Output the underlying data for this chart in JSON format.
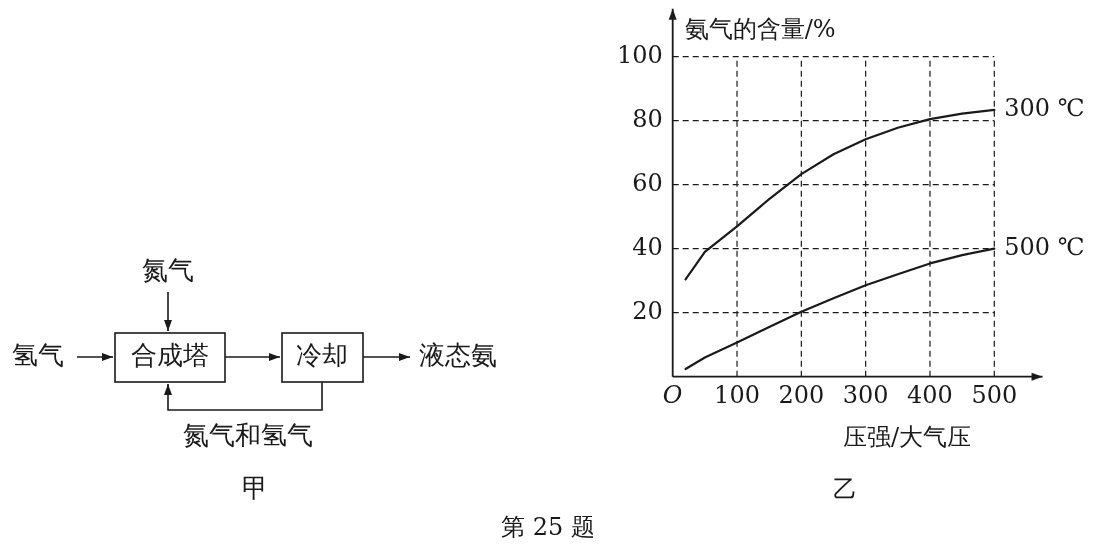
{
  "chart_data": [
    {
      "type": "other",
      "annotations": [
        "氮气",
        "氢气",
        "合成塔",
        "冷却",
        "液态氨",
        "氮气和氢气",
        "甲"
      ]
    },
    {
      "type": "line",
      "xlabel": "压强/大气压",
      "ylabel": "氨气的含量/%",
      "annotations": [
        "乙",
        "第 25 题"
      ],
      "xlim": [
        0,
        575
      ],
      "ylim": [
        0,
        115
      ],
      "xticks": [
        {
          "value": 0,
          "label": "O"
        },
        100,
        200,
        300,
        400,
        500
      ],
      "yticks": [
        20,
        40,
        60,
        80,
        100
      ],
      "grid": true,
      "legend": false,
      "series": [
        {
          "name": "300 ℃",
          "color": "#1a1a1a",
          "x": [
            20,
            50,
            100,
            150,
            200,
            250,
            300,
            350,
            400,
            450,
            500
          ],
          "values": [
            30.4,
            39,
            47,
            55.5,
            63.3,
            69.5,
            74.2,
            77.8,
            80.5,
            82.2,
            83.4
          ]
        },
        {
          "name": "500 ℃",
          "color": "#1a1a1a",
          "x": [
            20,
            50,
            100,
            150,
            200,
            250,
            300,
            350,
            400,
            450,
            500
          ],
          "values": [
            2.4,
            6,
            10.7,
            15.5,
            20.3,
            24.5,
            28.6,
            32,
            35.4,
            38,
            40
          ]
        }
      ]
    }
  ]
}
